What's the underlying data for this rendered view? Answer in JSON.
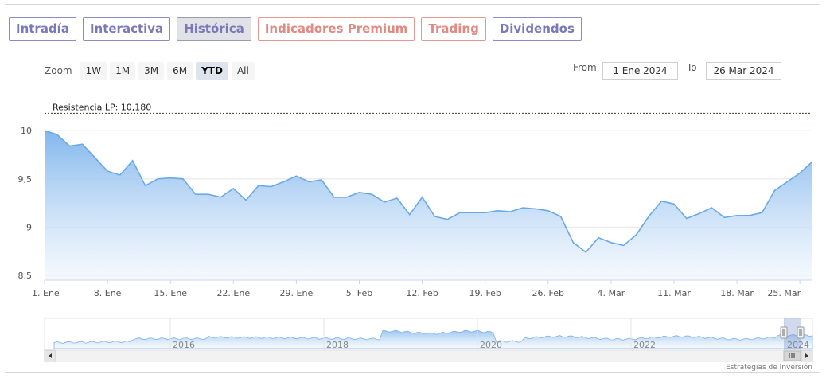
{
  "tabs": [
    {
      "label": "Intradía",
      "style": "purple",
      "active": false
    },
    {
      "label": "Interactiva",
      "style": "purple",
      "active": false
    },
    {
      "label": "Histórica",
      "style": "purple",
      "active": true
    },
    {
      "label": "Indicadores Premium",
      "style": "orange",
      "active": false
    },
    {
      "label": "Trading",
      "style": "orange",
      "active": false
    },
    {
      "label": "Dividendos",
      "style": "purple",
      "active": false
    }
  ],
  "zoom": {
    "label": "Zoom",
    "buttons": [
      "1W",
      "1M",
      "3M",
      "6M",
      "YTD",
      "All"
    ],
    "active": "YTD"
  },
  "range": {
    "from_label": "From",
    "from_value": "1 Ene 2024",
    "to_label": "To",
    "to_value": "26 Mar 2024"
  },
  "colors": {
    "line": "#6aa9e6",
    "fill_top": "#7cb3ec",
    "fill_bottom": "#eef5fd",
    "tab_purple": "#7a79b8",
    "tab_orange": "#e08a84"
  },
  "chart_data": {
    "type": "area",
    "title": "",
    "xlabel": "",
    "ylabel": "",
    "x_ticks": [
      "1. Ene",
      "8. Ene",
      "15. Ene",
      "22. Ene",
      "29. Ene",
      "5. Feb",
      "12. Feb",
      "19. Feb",
      "26. Feb",
      "4. Mar",
      "11. Mar",
      "18. Mar",
      "25. Mar"
    ],
    "y_ticks": [
      "8,5",
      "9",
      "9,5",
      "10"
    ],
    "ylim": [
      8.45,
      10.2
    ],
    "grid": true,
    "annotation": {
      "label": "Resistencia LP: 10,180",
      "value": 10.18
    },
    "series": [
      {
        "x": [
          0,
          1,
          2,
          3,
          4,
          5,
          6,
          7,
          8,
          9,
          10,
          11,
          12,
          13,
          14,
          15,
          16,
          17,
          18,
          19,
          20,
          21,
          22,
          23,
          24,
          25,
          26,
          27,
          28,
          29,
          30,
          31,
          32,
          33,
          34,
          35,
          36,
          37,
          38,
          39,
          40,
          41,
          42,
          43,
          44,
          45,
          46,
          47,
          48,
          49,
          50,
          51,
          52,
          53,
          54,
          55,
          56,
          57,
          58,
          59,
          60,
          61
        ],
        "values": [
          10.0,
          9.96,
          9.84,
          9.86,
          9.72,
          9.58,
          9.54,
          9.69,
          9.43,
          9.5,
          9.51,
          9.5,
          9.34,
          9.34,
          9.31,
          9.4,
          9.28,
          9.43,
          9.42,
          9.47,
          9.53,
          9.47,
          9.49,
          9.31,
          9.31,
          9.36,
          9.34,
          9.26,
          9.3,
          9.13,
          9.31,
          9.11,
          9.08,
          9.15,
          9.15,
          9.15,
          9.17,
          9.16,
          9.2,
          9.19,
          9.17,
          9.11,
          8.84,
          8.74,
          8.89,
          8.84,
          8.81,
          8.92,
          9.11,
          9.27,
          9.24,
          9.09,
          9.14,
          9.2,
          9.1,
          9.12,
          9.12,
          9.15,
          9.38,
          9.47,
          9.56,
          9.68
        ]
      }
    ]
  },
  "navigator": {
    "year_labels": [
      "2016",
      "2018",
      "2020",
      "2022",
      "2024"
    ]
  },
  "credit": "Estrategias de Inversión"
}
